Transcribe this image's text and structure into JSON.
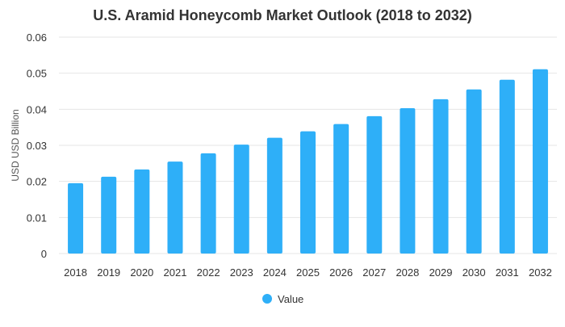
{
  "chart_data": {
    "type": "bar",
    "title": "U.S. Aramid Honeycomb Market Outlook (2018 to 2032)",
    "xlabel": "",
    "ylabel": "USD USD Billion",
    "ylim": [
      0,
      0.06
    ],
    "yticks": [
      0,
      0.01,
      0.02,
      0.03,
      0.04,
      0.05,
      0.06
    ],
    "ytick_labels": [
      "0",
      "0.01",
      "0.02",
      "0.03",
      "0.04",
      "0.05",
      "0.06"
    ],
    "grid": true,
    "legend_position": "bottom",
    "categories": [
      "2018",
      "2019",
      "2020",
      "2021",
      "2022",
      "2023",
      "2024",
      "2025",
      "2026",
      "2027",
      "2028",
      "2029",
      "2030",
      "2031",
      "2032"
    ],
    "series": [
      {
        "name": "Value",
        "color": "#2eaff8",
        "values": [
          0.0195,
          0.0213,
          0.0233,
          0.0255,
          0.0278,
          0.0302,
          0.0321,
          0.0339,
          0.0359,
          0.0381,
          0.0403,
          0.0428,
          0.0455,
          0.0482,
          0.0511
        ]
      }
    ]
  }
}
